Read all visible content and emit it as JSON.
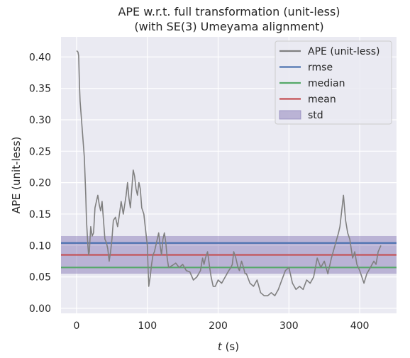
{
  "chart_data": {
    "type": "line",
    "title_line1": "APE w.r.t. full transformation (unit-less)",
    "title_line2": "(with SE(3) Umeyama alignment)",
    "xlabel_italic": "t",
    "xlabel_rest": " (s)",
    "ylabel": "APE (unit-less)",
    "xlim": [
      -22,
      452
    ],
    "ylim": [
      -0.008,
      0.432
    ],
    "xticks": [
      0,
      100,
      200,
      300,
      400
    ],
    "yticks": [
      0.0,
      0.05,
      0.1,
      0.15,
      0.2,
      0.25,
      0.3,
      0.35,
      0.4
    ],
    "ytick_labels": [
      "0.00",
      "0.05",
      "0.10",
      "0.15",
      "0.20",
      "0.25",
      "0.30",
      "0.35",
      "0.40"
    ],
    "grid": true,
    "legend_position": "top-right",
    "legend": [
      {
        "label": "APE (unit-less)",
        "color": "#808080",
        "kind": "line"
      },
      {
        "label": "rmse",
        "color": "#4c72b0",
        "kind": "line"
      },
      {
        "label": "median",
        "color": "#55a868",
        "kind": "line"
      },
      {
        "label": "mean",
        "color": "#c44e52",
        "kind": "line"
      },
      {
        "label": "std",
        "color": "#8172b2",
        "kind": "patch"
      }
    ],
    "stats": {
      "rmse": 0.104,
      "median": 0.065,
      "mean": 0.085,
      "std_band": [
        0.055,
        0.115
      ]
    },
    "series": [
      {
        "name": "APE (unit-less)",
        "color": "#808080",
        "x": [
          0,
          2,
          3,
          4,
          5,
          7,
          9,
          11,
          13,
          14,
          15,
          16,
          17,
          18,
          19,
          20,
          22,
          24,
          26,
          28,
          30,
          32,
          34,
          36,
          38,
          40,
          42,
          44,
          46,
          48,
          50,
          52,
          55,
          58,
          60,
          63,
          66,
          68,
          70,
          72,
          74,
          76,
          78,
          80,
          82,
          84,
          86,
          88,
          90,
          92,
          95,
          98,
          100,
          101,
          102,
          104,
          106,
          108,
          110,
          112,
          114,
          116,
          118,
          120,
          122,
          124,
          126,
          128,
          130,
          135,
          140,
          145,
          150,
          155,
          160,
          165,
          170,
          175,
          178,
          180,
          182,
          185,
          188,
          190,
          193,
          196,
          200,
          205,
          210,
          215,
          218,
          220,
          222,
          225,
          228,
          230,
          233,
          235,
          238,
          240,
          245,
          250,
          255,
          260,
          265,
          270,
          275,
          280,
          285,
          290,
          295,
          300,
          305,
          310,
          315,
          320,
          325,
          330,
          335,
          340,
          345,
          350,
          355,
          360,
          365,
          370,
          372,
          375,
          377,
          380,
          383,
          386,
          390,
          393,
          396,
          400,
          403,
          406,
          410,
          415,
          420,
          423,
          426,
          430
        ],
        "values": [
          0.41,
          0.408,
          0.402,
          0.36,
          0.33,
          0.3,
          0.27,
          0.24,
          0.18,
          0.14,
          0.12,
          0.1,
          0.085,
          0.09,
          0.11,
          0.13,
          0.115,
          0.12,
          0.16,
          0.17,
          0.18,
          0.165,
          0.155,
          0.17,
          0.14,
          0.11,
          0.105,
          0.095,
          0.075,
          0.09,
          0.11,
          0.14,
          0.145,
          0.13,
          0.145,
          0.17,
          0.15,
          0.165,
          0.18,
          0.2,
          0.175,
          0.16,
          0.19,
          0.22,
          0.21,
          0.19,
          0.18,
          0.2,
          0.19,
          0.16,
          0.15,
          0.12,
          0.1,
          0.065,
          0.035,
          0.05,
          0.07,
          0.085,
          0.09,
          0.1,
          0.11,
          0.12,
          0.1,
          0.085,
          0.11,
          0.12,
          0.105,
          0.08,
          0.065,
          0.068,
          0.072,
          0.065,
          0.07,
          0.06,
          0.058,
          0.045,
          0.05,
          0.06,
          0.08,
          0.07,
          0.08,
          0.09,
          0.065,
          0.05,
          0.035,
          0.035,
          0.045,
          0.04,
          0.05,
          0.06,
          0.065,
          0.07,
          0.09,
          0.08,
          0.065,
          0.06,
          0.075,
          0.068,
          0.055,
          0.055,
          0.04,
          0.035,
          0.045,
          0.025,
          0.02,
          0.02,
          0.025,
          0.02,
          0.03,
          0.045,
          0.06,
          0.065,
          0.04,
          0.03,
          0.035,
          0.03,
          0.045,
          0.04,
          0.05,
          0.08,
          0.065,
          0.075,
          0.055,
          0.08,
          0.1,
          0.12,
          0.13,
          0.16,
          0.18,
          0.14,
          0.12,
          0.11,
          0.08,
          0.09,
          0.07,
          0.06,
          0.05,
          0.04,
          0.055,
          0.065,
          0.075,
          0.07,
          0.09,
          0.1
        ]
      }
    ]
  }
}
